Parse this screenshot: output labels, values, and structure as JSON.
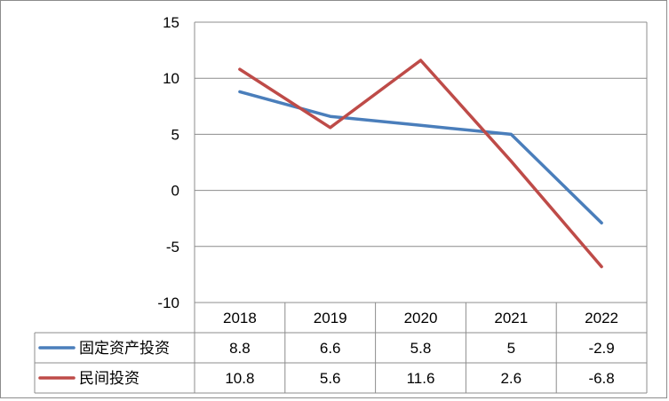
{
  "chart_data": {
    "type": "line",
    "categories": [
      "2018",
      "2019",
      "2020",
      "2021",
      "2022"
    ],
    "series": [
      {
        "name": "固定资产投资",
        "color": "#4a7ebb",
        "values": [
          8.8,
          6.6,
          5.8,
          5,
          -2.9
        ],
        "labels": [
          "8.8",
          "6.6",
          "5.8",
          "5",
          "-2.9"
        ]
      },
      {
        "name": "民间投资",
        "color": "#be4b48",
        "values": [
          10.8,
          5.6,
          11.6,
          2.6,
          -6.8
        ],
        "labels": [
          "10.8",
          "5.6",
          "11.6",
          "2.6",
          "-6.8"
        ]
      }
    ],
    "ylim": [
      -10,
      15
    ],
    "yticks": [
      "15",
      "10",
      "5",
      "0",
      "-5",
      "-10"
    ],
    "grid": true,
    "legend": "data-table"
  }
}
